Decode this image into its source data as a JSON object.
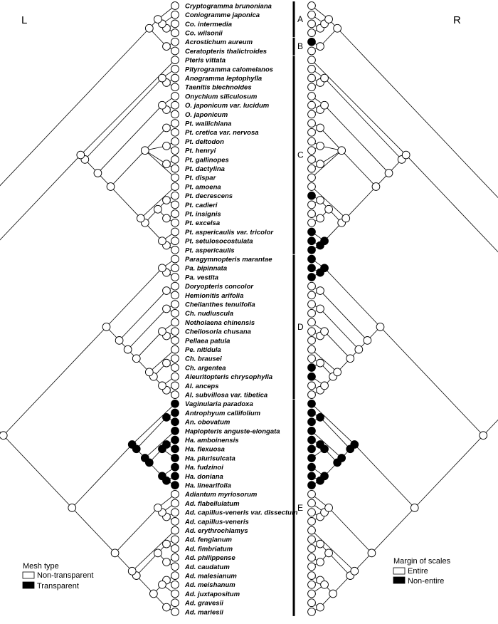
{
  "side_labels": {
    "left": "L",
    "right": "R"
  },
  "taxa": [
    "Cryptogramma brunoniana",
    "Coniogramme japonica",
    "Co. intermedia",
    "Co. wilsonii",
    "Acrostichum aureum",
    "Ceratopteris thalictroides",
    "Pteris vittata",
    "Pityrogramma calomelanos",
    "Anogramma leptophylla",
    "Taenitis blechnoides",
    "Onychium siliculosum",
    "O. japonicum var. lucidum",
    "O. japonicum",
    "Pt. wallichiana",
    "Pt. cretica var. nervosa",
    "Pt. deltodon",
    "Pt. henryi",
    "Pt. gallinopes",
    "Pt. dactylina",
    "Pt. dispar",
    "Pt. amoena",
    "Pt. decrescens",
    "Pt. cadieri",
    "Pt. insignis",
    "Pt. excelsa",
    "Pt. aspericaulis var. tricolor",
    "Pt. setulosocostulata",
    "Pt. aspericaulis",
    "Paragymnopteris marantae",
    "Pa. bipinnata",
    "Pa. vestita",
    "Doryopteris concolor",
    "Hemionitis arifolia",
    "Cheilanthes tenuifolia",
    "Ch. nudiuscula",
    "Notholaena chinensis",
    "Cheilosoria chusana",
    "Pellaea patula",
    "Pe. nitidula",
    "Ch. brausei",
    "Ch. argentea",
    "Aleuritopteris chrysophylla",
    "Al. anceps",
    "Al. subvillosa var. tibetica",
    "Vaginularia paradoxa",
    "Antrophyum callifolium",
    "An. obovatum",
    "Haplopteris anguste-elongata",
    "Ha. amboinensis",
    "Ha. flexuosa",
    "Ha. plurisulcata",
    "Ha. fudzinoi",
    "Ha. doniana",
    "Ha. linearifolia",
    "Adiantum myriosorum",
    "Ad. flabellulatum",
    "Ad. capillus-veneris var. dissectum",
    "Ad. capillus-veneris",
    "Ad. erythrochlamys",
    "Ad. fengianum",
    "Ad. fimbriatum",
    "Ad. philippense",
    "Ad. caudatum",
    "Ad. malesianum",
    "Ad. meishanum",
    "Ad. juxtapositum",
    "Ad. gravesii",
    "Ad. mariesii"
  ],
  "clades": [
    {
      "letter": "A",
      "first": 0,
      "last": 3
    },
    {
      "letter": "B",
      "first": 4,
      "last": 5
    },
    {
      "letter": "C",
      "first": 6,
      "last": 27
    },
    {
      "letter": "D",
      "first": 28,
      "last": 43
    },
    {
      "letter": "E",
      "first": 44,
      "last": 67
    }
  ],
  "left_states": [
    0,
    0,
    0,
    0,
    0,
    0,
    0,
    0,
    0,
    0,
    0,
    0,
    0,
    0,
    0,
    0,
    0,
    0,
    0,
    0,
    0,
    0,
    0,
    0,
    0,
    0,
    0,
    0,
    0,
    0,
    0,
    0,
    0,
    0,
    0,
    0,
    0,
    0,
    0,
    0,
    0,
    0,
    0,
    0,
    1,
    1,
    1,
    1,
    1,
    1,
    1,
    1,
    1,
    1,
    0,
    0,
    0,
    0,
    0,
    0,
    0,
    0,
    0,
    0,
    0,
    0,
    0,
    0
  ],
  "right_states": [
    0,
    0,
    0,
    0,
    1,
    0,
    0,
    0,
    0,
    0,
    0,
    0,
    0,
    0,
    0,
    0,
    0,
    0,
    0,
    0,
    0,
    1,
    0,
    0,
    0,
    1,
    1,
    1,
    1,
    1,
    1,
    0,
    0,
    0,
    0,
    0,
    0,
    0,
    0,
    0,
    1,
    1,
    0,
    0,
    1,
    1,
    1,
    1,
    1,
    1,
    1,
    1,
    1,
    1,
    0,
    0,
    0,
    0,
    0,
    0,
    0,
    0,
    0,
    0,
    0,
    0,
    0,
    0
  ],
  "legend_left": {
    "title": "Mesh type",
    "items": [
      {
        "label": "Non-transparent",
        "color": "#ffffff"
      },
      {
        "label": "Transparent",
        "color": "#000000"
      }
    ]
  },
  "legend_right": {
    "title": "Margin of scales",
    "items": [
      {
        "label": "Entire",
        "color": "#ffffff"
      },
      {
        "label": "Non-entire",
        "color": "#000000"
      }
    ]
  },
  "colors": {
    "state_0": "#ffffff",
    "state_1": "#000000",
    "line": "#000000"
  }
}
